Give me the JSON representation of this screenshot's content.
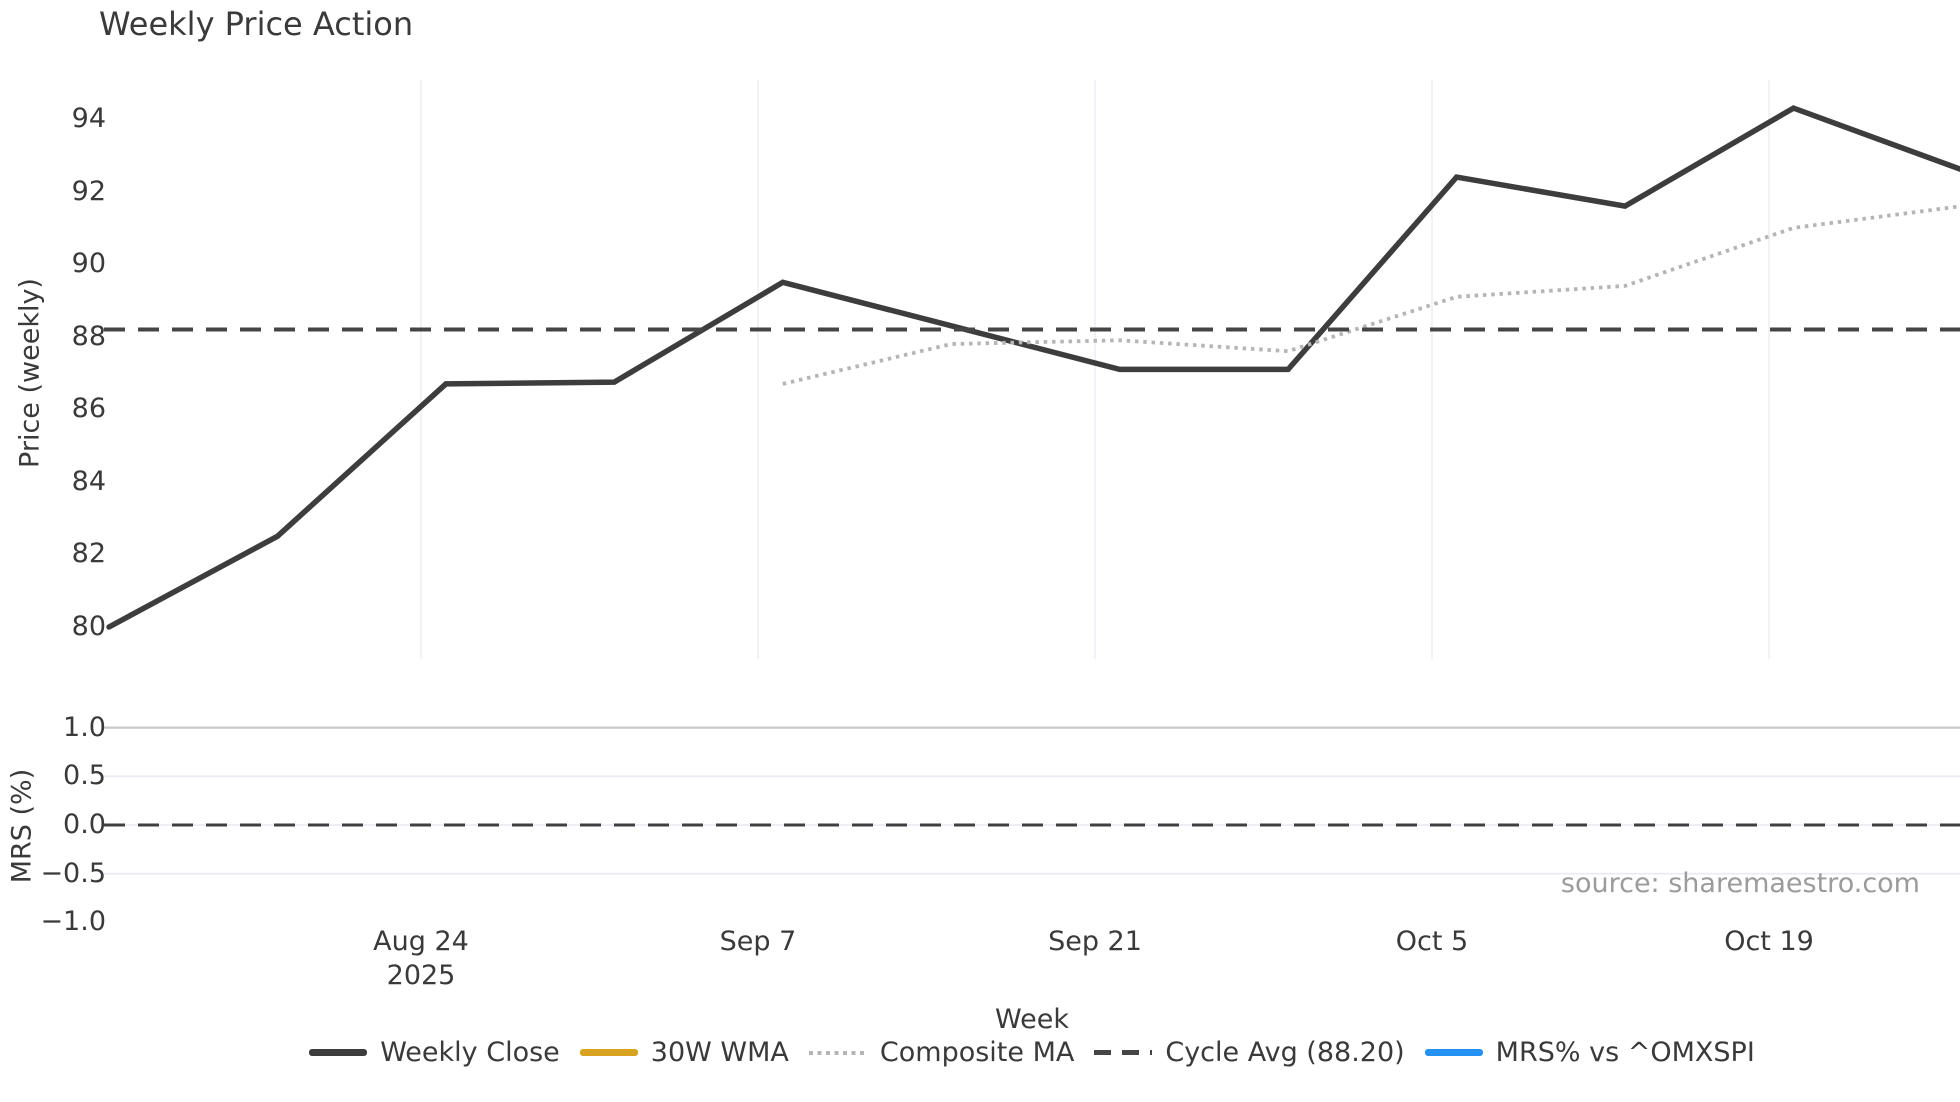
{
  "source_note": "source: sharemaestro.com",
  "colors": {
    "text": "#3a3a3a",
    "source_text": "#9b9b9b",
    "vertical_grid": "#edeef3",
    "mrs_grid": "#e9eaf2",
    "mrs_top_line": "#c8c8c8",
    "weekly_close": "#3d3d3d",
    "wma_30w": "#d7a21e",
    "composite_ma": "#b5b5b5",
    "cycle_avg": "#454545",
    "mrs_line": "#2492f5"
  },
  "chart_data": {
    "type": "line",
    "title": "Weekly Price Action",
    "xlabel": "Week",
    "x_unit": "weekly data points; x ticks fall between points",
    "x_tick_labels": [
      [
        "Aug 24",
        "2025"
      ],
      [
        "Sep 7"
      ],
      [
        "Sep 21"
      ],
      [
        "Oct 5"
      ],
      [
        "Oct 19"
      ]
    ],
    "grid": "vertical gridlines on price panel, horizontal gridlines on MRS panel",
    "legend_position": "bottom-center",
    "price_panel": {
      "ylabel": "Price (weekly)",
      "yticks": [
        94,
        92,
        90,
        88,
        86,
        84,
        82,
        80
      ],
      "ytick_labels": [
        "94",
        "92",
        "90",
        "88",
        "86",
        "84",
        "82",
        "80"
      ],
      "ylim": [
        79.1,
        95.1
      ],
      "series": [
        {
          "name": "Weekly Close",
          "line": "solid",
          "color": "#3d3d3d",
          "week_index": [
            0,
            1,
            2,
            3,
            4,
            5,
            6,
            7,
            8,
            9,
            10,
            11
          ],
          "values": [
            80.0,
            82.5,
            86.7,
            86.75,
            89.5,
            88.3,
            87.1,
            87.1,
            92.4,
            91.6,
            94.3,
            92.6
          ]
        },
        {
          "name": "30W WMA",
          "line": "solid",
          "color": "#d7a21e",
          "week_index": [],
          "values": []
        },
        {
          "name": "Composite MA",
          "line": "dotted",
          "color": "#b5b5b5",
          "week_index": [
            4,
            5,
            6,
            7,
            8,
            9,
            10,
            11
          ],
          "values": [
            86.7,
            87.8,
            87.9,
            87.6,
            89.1,
            89.4,
            91.0,
            91.6
          ]
        },
        {
          "name": "Cycle Avg (88.20)",
          "line": "dashed",
          "color": "#454545",
          "hline": 88.2
        }
      ]
    },
    "mrs_panel": {
      "ylabel": "MRS (%)",
      "yticks": [
        1.0,
        0.5,
        0.0,
        -0.5,
        -1.0
      ],
      "ytick_labels": [
        "1.0",
        "0.5",
        "0.0",
        "−0.5",
        "−1.0"
      ],
      "ylim": [
        -1.15,
        1.0
      ],
      "zero_line": 0.0,
      "series": [
        {
          "name": "MRS% vs ^OMXSPI",
          "line": "solid",
          "color": "#2492f5",
          "week_index": [],
          "values": []
        }
      ]
    },
    "legend": [
      {
        "label": "Weekly Close",
        "swatch": "solid",
        "color": "#3d3d3d"
      },
      {
        "label": "30W WMA",
        "swatch": "solid",
        "color": "#d7a21e"
      },
      {
        "label": "Composite MA",
        "swatch": "dotted",
        "color": "#b5b5b5"
      },
      {
        "label": "Cycle Avg (88.20)",
        "swatch": "dashed",
        "color": "#454545"
      },
      {
        "label": "MRS% vs ^OMXSPI",
        "swatch": "solid",
        "color": "#2492f5"
      }
    ]
  }
}
